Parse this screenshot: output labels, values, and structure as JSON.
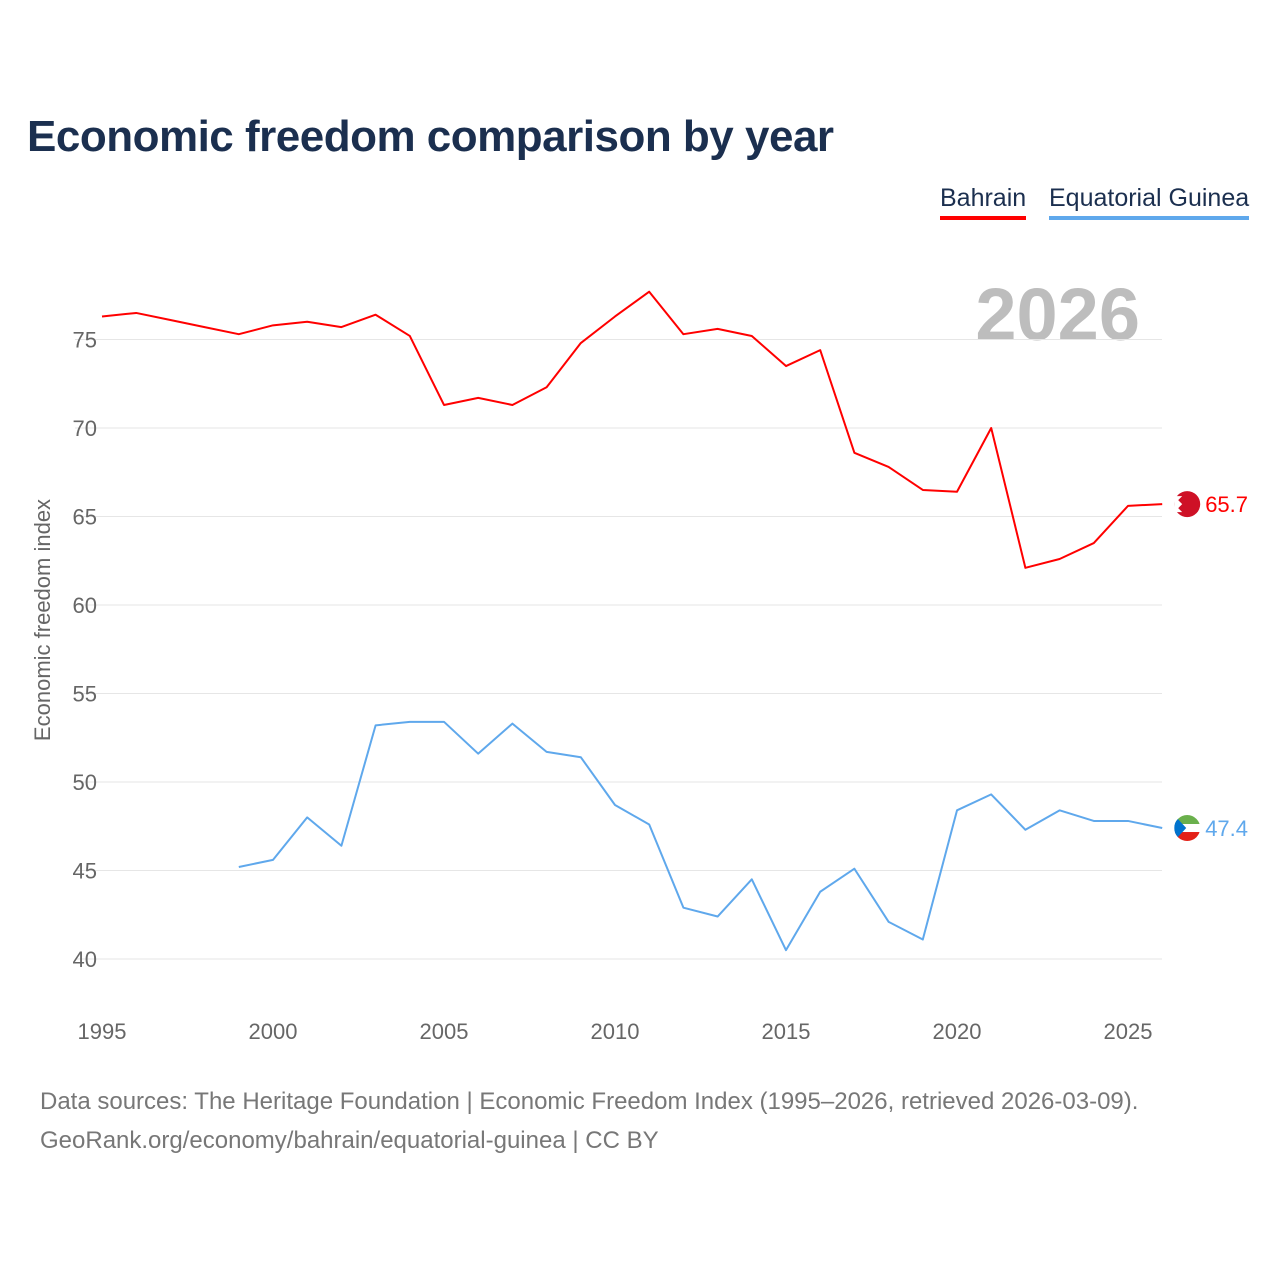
{
  "title": "Economic freedom comparison by year",
  "year_watermark": "2026",
  "footer": {
    "line1": "Data sources: The Heritage Foundation | Economic Freedom Index (1995–2026, retrieved 2026-03-09).",
    "line2": "GeoRank.org/economy/bahrain/equatorial-guinea | CC BY"
  },
  "chart_data": {
    "type": "line",
    "title": "Economic freedom comparison by year",
    "xlabel": "",
    "ylabel": "Economic freedom index",
    "xlim": [
      1995,
      2026
    ],
    "ylim": [
      40,
      78
    ],
    "xticks": [
      1995,
      2000,
      2005,
      2010,
      2015,
      2020,
      2025
    ],
    "yticks": [
      40,
      45,
      50,
      55,
      60,
      65,
      70,
      75
    ],
    "grid": true,
    "legend_position": "top-right",
    "series": [
      {
        "name": "Bahrain",
        "color": "#ff0000",
        "end_label": "65.7",
        "x": [
          1995,
          1996,
          1997,
          1998,
          1999,
          2000,
          2001,
          2002,
          2003,
          2004,
          2005,
          2006,
          2007,
          2008,
          2009,
          2010,
          2011,
          2012,
          2013,
          2014,
          2015,
          2016,
          2017,
          2018,
          2019,
          2020,
          2021,
          2022,
          2023,
          2024,
          2025,
          2026
        ],
        "values": [
          76.3,
          76.5,
          76.1,
          75.7,
          75.3,
          75.8,
          76.0,
          75.7,
          76.4,
          75.2,
          71.3,
          71.7,
          71.3,
          72.3,
          74.8,
          76.3,
          77.7,
          75.3,
          75.6,
          75.2,
          73.5,
          74.4,
          68.6,
          67.8,
          66.5,
          66.4,
          70.0,
          62.1,
          62.6,
          63.5,
          65.6,
          65.7
        ]
      },
      {
        "name": "Equatorial Guinea",
        "color": "#5fa8ec",
        "end_label": "47.4",
        "x": [
          1999,
          2000,
          2001,
          2002,
          2003,
          2004,
          2005,
          2006,
          2007,
          2008,
          2009,
          2010,
          2011,
          2012,
          2013,
          2014,
          2015,
          2016,
          2017,
          2018,
          2019,
          2020,
          2021,
          2022,
          2023,
          2024,
          2025,
          2026
        ],
        "values": [
          45.2,
          45.6,
          48.0,
          46.4,
          53.2,
          53.4,
          53.4,
          51.6,
          53.3,
          51.7,
          51.4,
          48.7,
          47.6,
          42.9,
          42.4,
          44.5,
          40.5,
          43.8,
          45.1,
          42.1,
          41.1,
          48.4,
          49.3,
          47.3,
          48.4,
          47.8,
          47.8,
          47.4
        ]
      }
    ]
  }
}
